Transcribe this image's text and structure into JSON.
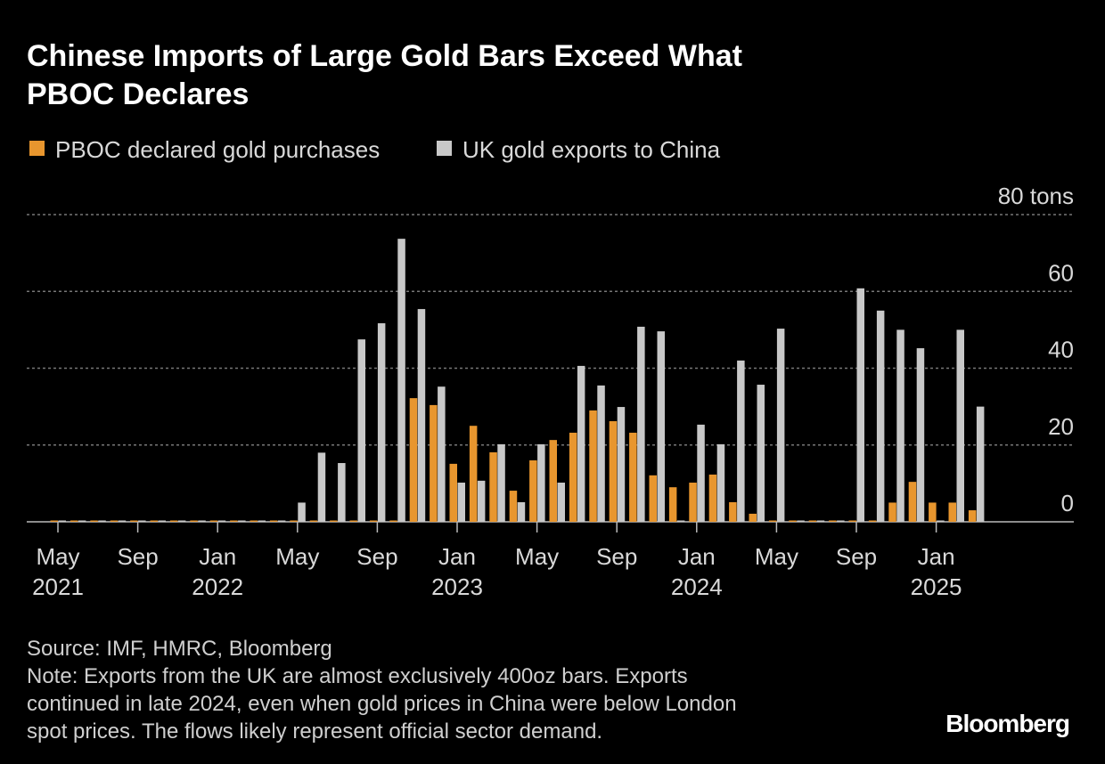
{
  "chart_data": {
    "type": "bar",
    "title": [
      "Chinese Imports of Large Gold Bars Exceed What",
      "PBOC Declares"
    ],
    "categories": [
      "May 2021",
      null,
      null,
      null,
      "Sep",
      null,
      null,
      null,
      "Jan 2022",
      null,
      null,
      null,
      "May",
      null,
      null,
      null,
      "Sep",
      null,
      null,
      null,
      "Jan 2023",
      null,
      null,
      null,
      "May",
      null,
      null,
      null,
      "Sep",
      null,
      null,
      null,
      "Jan 2024",
      null,
      null,
      null,
      "May",
      null,
      null,
      null,
      "Sep",
      null,
      null,
      null,
      "Jan 2025",
      null,
      null
    ],
    "series": [
      {
        "name": "PBOC declared gold purchases",
        "color": "#e8962e",
        "values": [
          0,
          0,
          0,
          0,
          0,
          0,
          0,
          0,
          0,
          0,
          0,
          0,
          0,
          0,
          0,
          0,
          0,
          0,
          32.2,
          30.4,
          15.1,
          25,
          18.1,
          8.1,
          16,
          21.3,
          23.2,
          29,
          26.2,
          23.2,
          12.1,
          9,
          10.2,
          12.3,
          5.1,
          2.1,
          0,
          0,
          0,
          0,
          0,
          0,
          5,
          10.4,
          5,
          5,
          3
        ]
      },
      {
        "name": "UK gold exports to China",
        "color": "#c8c8c8",
        "values": [
          0,
          0,
          0,
          0,
          0,
          0,
          0,
          0,
          0,
          0,
          0,
          0,
          5,
          18,
          15.3,
          47.5,
          51.7,
          73.7,
          55.4,
          35.2,
          10.2,
          10.7,
          20.2,
          5.1,
          20.2,
          10.2,
          40.6,
          35.5,
          29.9,
          50.8,
          49.6,
          0,
          25.3,
          20.2,
          42,
          35.7,
          50.3,
          0,
          0,
          0,
          60.8,
          55,
          50,
          45.2,
          0,
          50,
          30
        ]
      }
    ],
    "ylim": [
      0,
      80
    ],
    "yticks": [
      0,
      20,
      40,
      60,
      {
        "value": 80,
        "label": "80 tons"
      }
    ],
    "grid": true,
    "source": "Source: IMF, HMRC, Bloomberg",
    "note": [
      "Note: Exports from the UK are almost exclusively 400oz bars. Exports",
      "continued in late 2024, even when gold prices in China were below London",
      "spot prices. The flows likely represent official sector demand."
    ],
    "brand": "Bloomberg"
  }
}
